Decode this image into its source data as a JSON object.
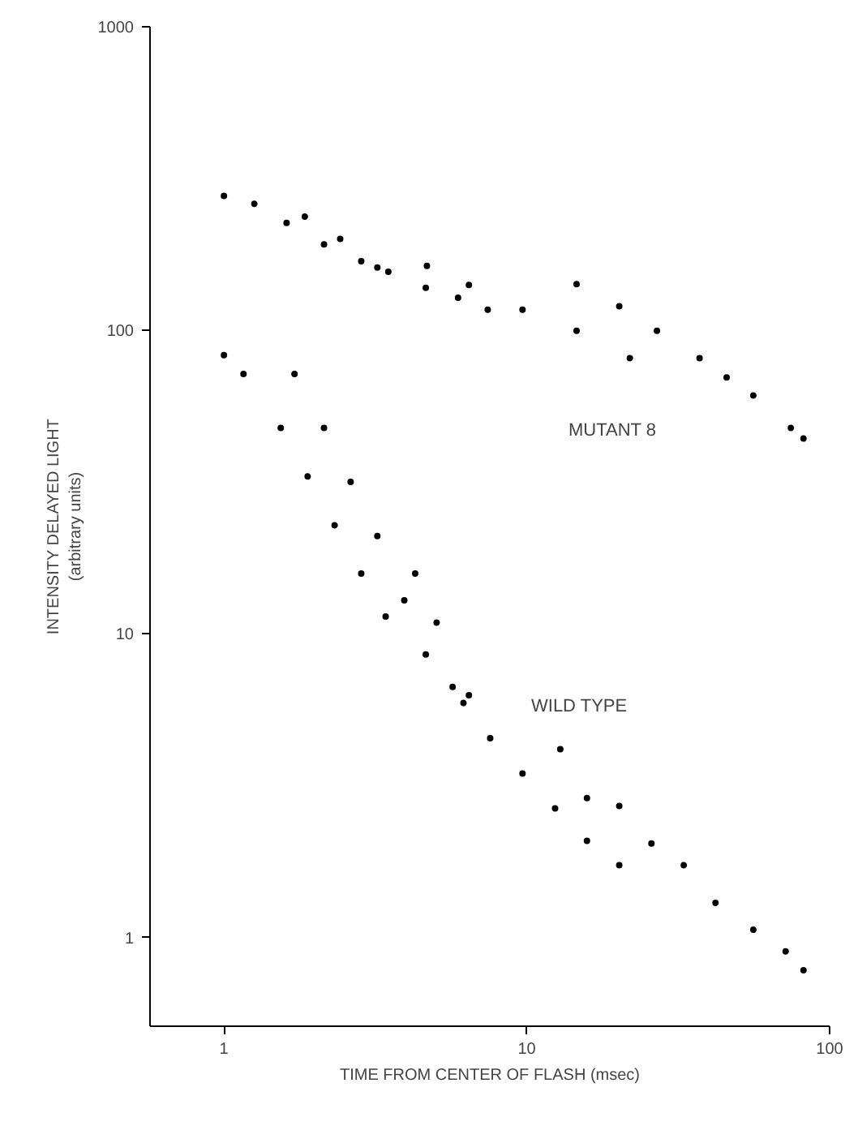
{
  "chart_data": {
    "type": "scatter",
    "xlabel": "TIME FROM CENTER OF FLASH (msec)",
    "ylabel": "INTENSITY DELAYED LIGHT\n(arbitrary units)",
    "log": "xy",
    "xlim": [
      0.57,
      100
    ],
    "ylim": [
      0.51,
      1000
    ],
    "xticks": [
      1,
      10,
      100
    ],
    "yticks": [
      1,
      10,
      100,
      1000
    ],
    "grid": false,
    "marker": "circle",
    "series": [
      {
        "color": "#000000",
        "x": [
          1.0,
          1.26,
          1.61,
          2.14,
          2.84,
          3.49,
          4.64,
          5.93,
          7.43
        ],
        "values": [
          277,
          261,
          226,
          192,
          169,
          156,
          138,
          128,
          117
        ]
      },
      {
        "color": "#000000",
        "x": [
          1.85,
          2.42,
          3.21
        ],
        "values": [
          237,
          200,
          161
        ]
      },
      {
        "color": "#000000",
        "x": [
          4.68,
          6.44,
          9.68,
          14.6,
          21.9
        ],
        "values": [
          163,
          141,
          117,
          99.6,
          81
        ]
      },
      {
        "color": "#000000",
        "x": [
          14.6,
          20.2,
          26.9,
          37.2,
          45.7,
          56,
          74.5,
          82
        ],
        "values": [
          142,
          120,
          99.6,
          81,
          70,
          61,
          47.7,
          44
        ]
      },
      {
        "color": "#000000",
        "x": [
          1.0,
          1.16,
          1.54,
          1.89,
          2.32,
          2.84,
          3.42
        ],
        "values": [
          82.8,
          71.8,
          47.7,
          33,
          22.8,
          15.8,
          11.4
        ]
      },
      {
        "color": "#000000",
        "x": [
          1.71,
          2.14,
          2.62,
          3.21,
          3.94,
          4.64,
          5.69,
          6.18,
          7.57,
          9.68,
          12.4,
          15.8,
          20.2
        ],
        "values": [
          71.8,
          47.7,
          31.7,
          21,
          12.9,
          8.56,
          6.69,
          5.92,
          4.53,
          3.47,
          2.66,
          2.08,
          1.73
        ]
      },
      {
        "color": "#000000",
        "x": [
          4.28,
          5.04,
          6.44
        ],
        "values": [
          15.8,
          10.9,
          6.28
        ]
      },
      {
        "color": "#000000",
        "x": [
          12.9,
          15.8,
          20.2,
          25.8,
          33,
          42,
          56,
          71.6,
          82
        ],
        "values": [
          4.17,
          2.88,
          2.71,
          2.04,
          1.73,
          1.3,
          1.06,
          0.9,
          0.78
        ]
      }
    ],
    "annotations": [
      "MUTANT 8",
      "WILD TYPE"
    ]
  }
}
